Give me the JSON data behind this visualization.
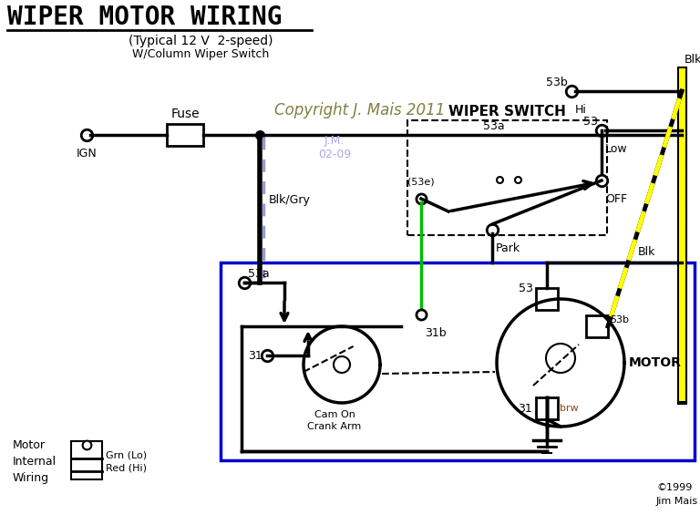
{
  "title": "WIPER MOTOR WIRING",
  "subtitle1": "(Typical 12 V  2-speed)",
  "subtitle2": "W/Column Wiper Switch",
  "copyright": "Copyright J. Mais 2011",
  "initials": "J.M.\n02-09",
  "credit": "©1999\nJim Mais",
  "bg_color": "#ffffff",
  "copyright_color": "#808040",
  "initials_color": "#aaaaee",
  "wire_blue_gray": "#9999cc",
  "wire_yellow": "#ffff00",
  "wire_green": "#00bb00",
  "wire_brw": "#8B4513",
  "blue_box": "#0000cc"
}
